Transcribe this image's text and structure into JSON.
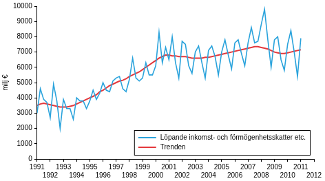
{
  "chart_data": {
    "type": "line",
    "ylabel": "milj €",
    "x": [
      1991,
      1991.25,
      1991.5,
      1991.75,
      1992,
      1992.25,
      1992.5,
      1992.75,
      1993,
      1993.25,
      1993.5,
      1993.75,
      1994,
      1994.25,
      1994.5,
      1994.75,
      1995,
      1995.25,
      1995.5,
      1995.75,
      1996,
      1996.25,
      1996.5,
      1996.75,
      1997,
      1997.25,
      1997.5,
      1997.75,
      1998,
      1998.25,
      1998.5,
      1998.75,
      1999,
      1999.25,
      1999.5,
      1999.75,
      2000,
      2000.25,
      2000.5,
      2000.75,
      2001,
      2001.25,
      2001.5,
      2001.75,
      2002,
      2002.25,
      2002.5,
      2002.75,
      2003,
      2003.25,
      2003.5,
      2003.75,
      2004,
      2004.25,
      2004.5,
      2004.75,
      2005,
      2005.25,
      2005.5,
      2005.75,
      2006,
      2006.25,
      2006.5,
      2006.75,
      2007,
      2007.25,
      2007.5,
      2007.75,
      2008,
      2008.25,
      2008.5,
      2008.75,
      2009,
      2009.25,
      2009.5,
      2009.75,
      2010,
      2010.25,
      2010.5,
      2010.75,
      2011
    ],
    "series": [
      {
        "name": "Löpande inkomst- och förmögenhetsskatter etc.",
        "color": "#2aa3dc",
        "values": [
          3000,
          4600,
          3900,
          3700,
          2700,
          4900,
          3800,
          2000,
          3900,
          3300,
          3300,
          2600,
          4000,
          3800,
          3800,
          3300,
          3800,
          4500,
          3900,
          4300,
          5000,
          4500,
          4400,
          5100,
          5300,
          5400,
          4600,
          4400,
          5200,
          6600,
          5300,
          5100,
          5300,
          6300,
          5500,
          5500,
          6100,
          8300,
          6300,
          7300,
          6500,
          8000,
          6300,
          5300,
          7700,
          7500,
          6100,
          5600,
          7000,
          7400,
          6300,
          5300,
          7100,
          7400,
          6700,
          5500,
          7000,
          7800,
          6800,
          5900,
          7600,
          7800,
          6900,
          6100,
          7600,
          8600,
          7600,
          7700,
          8800,
          9800,
          7800,
          6000,
          7800,
          8000,
          6500,
          5800,
          7500,
          8400,
          7000,
          5400,
          7900
        ]
      },
      {
        "name": "Trenden",
        "color": "#e4383c",
        "values": [
          3500,
          3600,
          3650,
          3600,
          3550,
          3500,
          3450,
          3400,
          3400,
          3400,
          3450,
          3500,
          3600,
          3700,
          3800,
          3900,
          4000,
          4100,
          4200,
          4400,
          4500,
          4650,
          4800,
          4900,
          5000,
          5100,
          5150,
          5250,
          5400,
          5500,
          5600,
          5700,
          5850,
          6000,
          6150,
          6300,
          6450,
          6600,
          6700,
          6800,
          6800,
          6750,
          6750,
          6700,
          6700,
          6700,
          6650,
          6600,
          6600,
          6600,
          6600,
          6650,
          6650,
          6700,
          6750,
          6800,
          6850,
          6900,
          6950,
          7000,
          7050,
          7100,
          7150,
          7200,
          7250,
          7300,
          7350,
          7350,
          7300,
          7250,
          7200,
          7100,
          7000,
          6950,
          6900,
          6900,
          6950,
          7000,
          7050,
          7100,
          7150
        ]
      }
    ],
    "xlim": [
      1991,
      2012
    ],
    "xticks": [
      1991,
      1992,
      1993,
      1994,
      1995,
      1996,
      1997,
      1998,
      1999,
      2000,
      2001,
      2002,
      2003,
      2004,
      2005,
      2006,
      2007,
      2008,
      2009,
      2010,
      2011,
      2012
    ],
    "ylim": [
      0,
      10000
    ],
    "yticks": [
      0,
      1000,
      2000,
      3000,
      4000,
      5000,
      6000,
      7000,
      8000,
      9000,
      10000
    ],
    "grid": false,
    "legend": "lower right"
  }
}
